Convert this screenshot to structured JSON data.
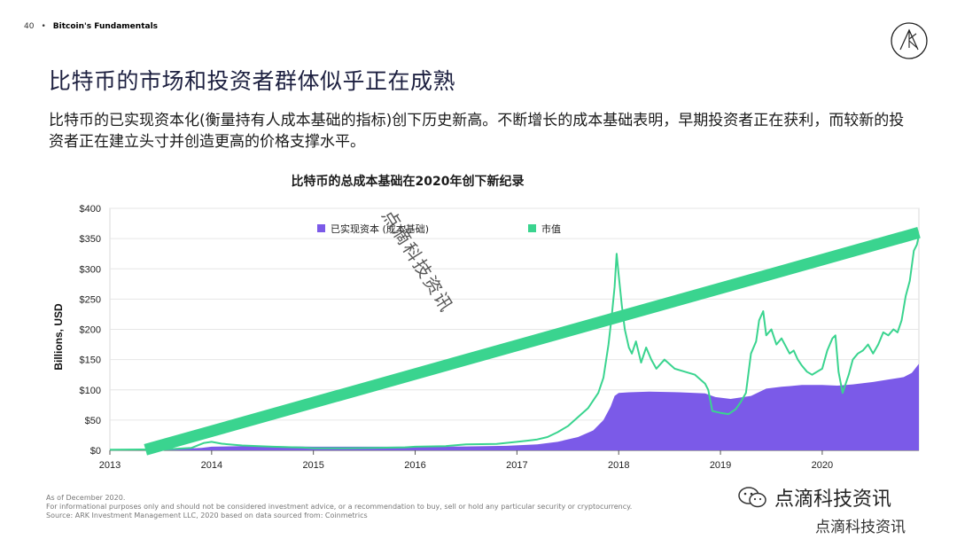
{
  "header": {
    "page_number": "40",
    "bullet": "•",
    "section": "Bitcoin's Fundamentals"
  },
  "title": "比特币的市场和投资者群体似乎正在成熟",
  "subtitle": "比特币的已实现资本化(衡量持有人成本基础的指标)创下历史新高。不断增长的成本基础表明，早期投资者正在获利，而较新的投资者正在建立头寸并创造更高的价格支撑水平。",
  "colors": {
    "realized": "#7b5ae8",
    "market": "#3ad48f",
    "title": "#1d2040",
    "axis": "#888888",
    "grid": "#e6e6e6"
  },
  "chart_data": {
    "type": "area",
    "title": "比特币的总成本基础在2020年创下新纪录",
    "ylabel": "Billions, USD",
    "xlabel": "",
    "ylim": [
      0,
      400
    ],
    "yticks": [
      "$0",
      "$50",
      "$100",
      "$150",
      "$200",
      "$250",
      "$300",
      "$350",
      "$400"
    ],
    "ytick_values": [
      0,
      50,
      100,
      150,
      200,
      250,
      300,
      350,
      400
    ],
    "xticks": [
      "2013",
      "2014",
      "2015",
      "2016",
      "2017",
      "2018",
      "2019",
      "2020"
    ],
    "xlim": [
      2013.0,
      2020.95
    ],
    "legend": {
      "position": "top-center"
    },
    "series": [
      {
        "name": "已实现资本 (成本基础)",
        "kind": "area",
        "x": [
          2013.0,
          2013.5,
          2013.9,
          2014.0,
          2014.3,
          2014.6,
          2015.0,
          2015.5,
          2016.0,
          2016.5,
          2016.9,
          2017.2,
          2017.4,
          2017.6,
          2017.75,
          2017.85,
          2017.92,
          2017.96,
          2018.0,
          2018.1,
          2018.3,
          2018.6,
          2018.85,
          2018.95,
          2019.1,
          2019.3,
          2019.45,
          2019.6,
          2019.8,
          2020.0,
          2020.15,
          2020.3,
          2020.5,
          2020.65,
          2020.8,
          2020.88,
          2020.95
        ],
        "values": [
          0.5,
          1,
          4,
          6,
          7,
          7,
          6,
          6,
          6,
          6.5,
          7.5,
          10,
          14,
          22,
          33,
          50,
          72,
          90,
          95,
          96,
          97,
          96,
          94,
          88,
          85,
          90,
          102,
          105,
          108,
          108,
          107,
          109,
          113,
          117,
          121,
          128,
          143
        ]
      },
      {
        "name": "市值",
        "kind": "line",
        "x": [
          2013.0,
          2013.3,
          2013.5,
          2013.8,
          2013.92,
          2014.0,
          2014.1,
          2014.3,
          2014.6,
          2014.9,
          2015.0,
          2015.3,
          2015.6,
          2015.9,
          2016.0,
          2016.3,
          2016.5,
          2016.8,
          2017.0,
          2017.1,
          2017.2,
          2017.3,
          2017.4,
          2017.5,
          2017.6,
          2017.7,
          2017.8,
          2017.85,
          2017.9,
          2017.93,
          2017.96,
          2017.98,
          2018.0,
          2018.03,
          2018.06,
          2018.1,
          2018.13,
          2018.17,
          2018.22,
          2018.27,
          2018.32,
          2018.37,
          2018.45,
          2018.55,
          2018.65,
          2018.75,
          2018.85,
          2018.88,
          2018.92,
          2019.0,
          2019.08,
          2019.15,
          2019.2,
          2019.25,
          2019.3,
          2019.35,
          2019.38,
          2019.42,
          2019.45,
          2019.5,
          2019.55,
          2019.6,
          2019.68,
          2019.72,
          2019.76,
          2019.8,
          2019.85,
          2019.9,
          2019.95,
          2020.0,
          2020.05,
          2020.1,
          2020.13,
          2020.16,
          2020.2,
          2020.26,
          2020.3,
          2020.35,
          2020.4,
          2020.45,
          2020.5,
          2020.55,
          2020.6,
          2020.65,
          2020.7,
          2020.74,
          2020.78,
          2020.82,
          2020.86,
          2020.9,
          2020.93,
          2020.95
        ],
        "values": [
          1,
          1.5,
          1.2,
          4,
          12,
          14,
          11,
          8,
          6,
          4.5,
          3.5,
          3.5,
          4,
          5,
          6,
          7,
          10,
          10.5,
          14,
          16,
          18,
          22,
          30,
          40,
          55,
          70,
          95,
          120,
          175,
          220,
          270,
          325,
          290,
          240,
          200,
          170,
          160,
          180,
          145,
          170,
          150,
          135,
          150,
          135,
          130,
          125,
          110,
          100,
          65,
          62,
          60,
          68,
          80,
          95,
          160,
          180,
          215,
          230,
          190,
          200,
          175,
          185,
          160,
          165,
          150,
          140,
          130,
          125,
          130,
          135,
          165,
          185,
          190,
          130,
          95,
          125,
          150,
          160,
          165,
          175,
          160,
          175,
          195,
          190,
          200,
          195,
          215,
          255,
          280,
          330,
          340,
          355
        ]
      }
    ],
    "trend_band": {
      "from": [
        2013.35,
        1
      ],
      "to": [
        2020.95,
        360
      ]
    }
  },
  "footer": {
    "line1": "As of December 2020.",
    "line2": "For informational purposes only and should not be considered investment advice, or a recommendation to buy, sell or hold any particular security or cryptocurrency.",
    "line3": "Source: ARK Investment Management LLC, 2020 based on data sourced from: Coinmetrics"
  },
  "watermark": {
    "diagonal": "点滴科技资讯",
    "brand": "点滴科技资讯",
    "brand_small": "点滴科技资讯",
    "logo_icon": "ark-logo-icon",
    "brand_icon": "wechat-icon"
  }
}
